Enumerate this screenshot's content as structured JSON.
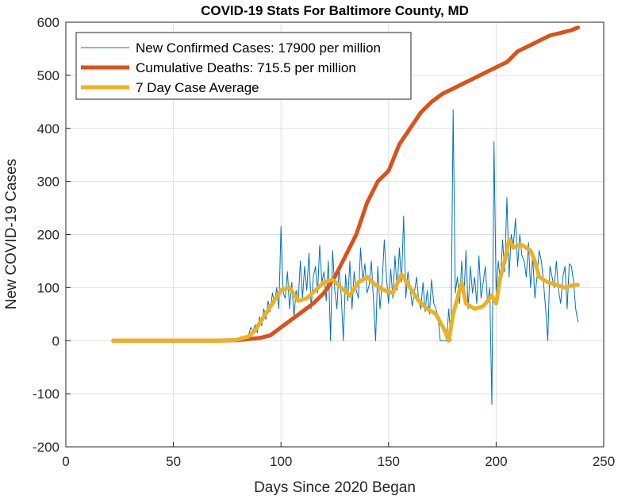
{
  "chart_data": {
    "type": "line",
    "title": "COVID-19 Stats For Baltimore County, MD",
    "xlabel": "Days Since 2020 Began",
    "ylabel": "New COVID-19 Cases",
    "xlim": [
      0,
      250
    ],
    "ylim": [
      -200,
      600
    ],
    "xticks": [
      0,
      50,
      100,
      150,
      200,
      250
    ],
    "yticks": [
      -200,
      -100,
      0,
      100,
      200,
      300,
      400,
      500,
      600
    ],
    "grid": true,
    "legend_position": "top-left",
    "series": [
      {
        "name": "New Confirmed Cases: 17900 per million",
        "color": "#0072BD",
        "style": "thin",
        "x": [
          22,
          50,
          75,
          78,
          80,
          82,
          84,
          85,
          86,
          87,
          88,
          89,
          90,
          91,
          92,
          93,
          94,
          95,
          96,
          97,
          98,
          99,
          100,
          101,
          102,
          103,
          104,
          105,
          106,
          107,
          108,
          109,
          110,
          111,
          112,
          113,
          114,
          115,
          116,
          117,
          118,
          119,
          120,
          121,
          122,
          123,
          124,
          125,
          126,
          127,
          128,
          129,
          130,
          131,
          132,
          133,
          134,
          135,
          136,
          137,
          138,
          139,
          140,
          141,
          142,
          143,
          144,
          145,
          146,
          147,
          148,
          149,
          150,
          151,
          152,
          153,
          154,
          155,
          156,
          157,
          158,
          159,
          160,
          161,
          162,
          163,
          164,
          165,
          166,
          167,
          168,
          169,
          170,
          171,
          172,
          173,
          174,
          175,
          176,
          177,
          178,
          179,
          180,
          181,
          182,
          183,
          184,
          185,
          186,
          187,
          188,
          189,
          190,
          191,
          192,
          193,
          194,
          195,
          196,
          197,
          198,
          199,
          200,
          201,
          202,
          203,
          204,
          205,
          206,
          207,
          208,
          209,
          210,
          211,
          212,
          213,
          214,
          215,
          216,
          217,
          218,
          219,
          220,
          221,
          222,
          223,
          224,
          225,
          226,
          227,
          228,
          229,
          230,
          231,
          232,
          233,
          234,
          235,
          236,
          237,
          238
        ],
        "y": [
          0,
          0,
          0,
          2,
          5,
          8,
          3,
          12,
          25,
          18,
          30,
          15,
          45,
          28,
          60,
          40,
          75,
          55,
          90,
          70,
          100,
          60,
          215,
          90,
          80,
          130,
          60,
          110,
          45,
          95,
          75,
          150,
          80,
          140,
          95,
          165,
          60,
          120,
          140,
          90,
          180,
          110,
          130,
          75,
          150,
          0,
          170,
          95,
          60,
          140,
          85,
          0,
          125,
          75,
          150,
          60,
          130,
          95,
          80,
          175,
          110,
          145,
          90,
          105,
          150,
          75,
          0,
          140,
          60,
          110,
          190,
          120,
          70,
          135,
          80,
          160,
          95,
          175,
          110,
          235,
          80,
          130,
          100,
          65,
          90,
          120,
          75,
          60,
          110,
          55,
          95,
          50,
          115,
          70,
          60,
          45,
          0,
          0,
          0,
          0,
          60,
          0,
          435,
          90,
          120,
          70,
          150,
          80,
          170,
          60,
          140,
          90,
          120,
          70,
          160,
          80,
          110,
          140,
          70,
          100,
          -120,
          375,
          90,
          150,
          110,
          190,
          130,
          270,
          120,
          200,
          180,
          230,
          140,
          200,
          160,
          150,
          120,
          185,
          100,
          160,
          80,
          120,
          170,
          150,
          110,
          60,
          0,
          140,
          120,
          100,
          150,
          95,
          70,
          120,
          140,
          60,
          145,
          140,
          110,
          60,
          35
        ]
      },
      {
        "name": "Cumulative Deaths: 715.5 per million",
        "color": "#D95319",
        "style": "thick",
        "x": [
          22,
          50,
          70,
          80,
          85,
          90,
          95,
          100,
          105,
          110,
          115,
          120,
          125,
          130,
          135,
          140,
          145,
          150,
          155,
          160,
          165,
          170,
          175,
          180,
          185,
          190,
          195,
          200,
          205,
          210,
          215,
          220,
          225,
          230,
          235,
          238
        ],
        "y": [
          0,
          0,
          0,
          1,
          3,
          5,
          10,
          25,
          40,
          55,
          70,
          90,
          120,
          160,
          200,
          260,
          300,
          320,
          370,
          400,
          430,
          450,
          465,
          475,
          485,
          495,
          505,
          515,
          525,
          545,
          555,
          565,
          575,
          580,
          585,
          590
        ]
      },
      {
        "name": "7 Day Case Average",
        "color": "#EDB120",
        "style": "thick",
        "x": [
          22,
          50,
          75,
          80,
          85,
          88,
          92,
          96,
          100,
          104,
          108,
          112,
          116,
          120,
          124,
          128,
          132,
          136,
          140,
          144,
          148,
          152,
          156,
          160,
          164,
          168,
          172,
          176,
          178,
          180,
          184,
          186,
          190,
          194,
          198,
          200,
          202,
          204,
          206,
          208,
          210,
          212,
          214,
          216,
          218,
          220,
          224,
          228,
          232,
          236,
          238
        ],
        "y": [
          0,
          0,
          0,
          2,
          8,
          20,
          45,
          70,
          95,
          100,
          75,
          80,
          95,
          110,
          115,
          100,
          85,
          110,
          120,
          105,
          95,
          90,
          125,
          100,
          75,
          60,
          50,
          20,
          0,
          50,
          110,
          70,
          60,
          65,
          85,
          70,
          120,
          150,
          190,
          175,
          180,
          180,
          175,
          170,
          150,
          120,
          110,
          105,
          100,
          105,
          105
        ]
      }
    ]
  }
}
